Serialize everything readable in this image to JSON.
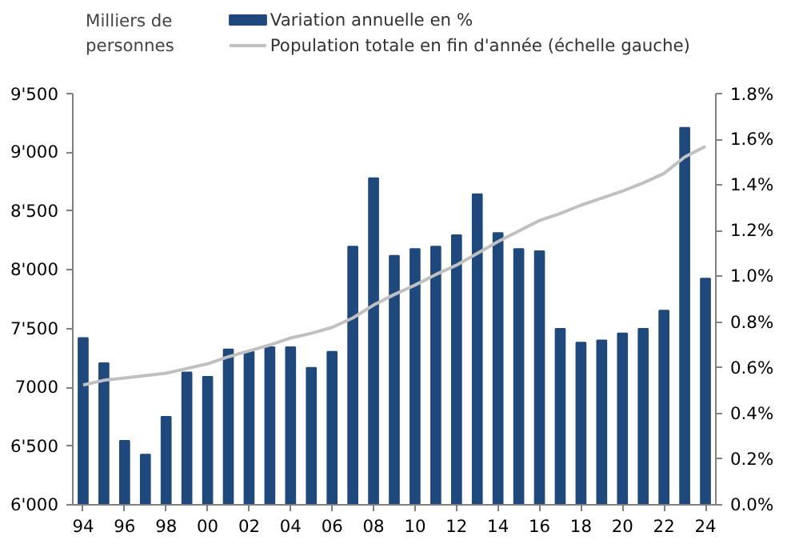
{
  "chart_data": {
    "type": "bar",
    "ylabel": "Milliers de\npersonnes",
    "legend": "top",
    "grid": false,
    "categories": [
      "94",
      null,
      "96",
      null,
      "98",
      null,
      "00",
      null,
      "02",
      null,
      "04",
      null,
      "06",
      null,
      "08",
      null,
      "10",
      null,
      "12",
      null,
      "14",
      null,
      "16",
      null,
      "18",
      null,
      "20",
      null,
      "22",
      null,
      "24"
    ],
    "ylim": [
      6000,
      9500
    ],
    "yticks": [
      {
        "value": 6000,
        "label": "6'000"
      },
      {
        "value": 6500,
        "label": "6'500"
      },
      7000,
      {
        "value": 7500,
        "label": "7'500"
      },
      {
        "value": 8000,
        "label": "8'000"
      },
      {
        "value": 8500,
        "label": "8'500"
      },
      {
        "value": 9000,
        "label": "9'000"
      },
      {
        "value": 9500,
        "label": "9'500"
      }
    ],
    "y2lim": [
      0,
      1.8
    ],
    "y2ticks": [
      {
        "value": 0,
        "label": "0.0%"
      },
      {
        "value": 0.2,
        "label": "0.2%"
      },
      {
        "value": 0.4,
        "label": "0.4%"
      },
      {
        "value": 0.6,
        "label": "0.6%"
      },
      {
        "value": 0.8,
        "label": "0.8%"
      },
      {
        "value": 1.0,
        "label": "1.0%"
      },
      {
        "value": 1.2,
        "label": "1.2%"
      },
      {
        "value": 1.4,
        "label": "1.4%"
      },
      {
        "value": 1.6,
        "label": "1.6%"
      },
      {
        "value": 1.8,
        "label": "1.8%"
      }
    ],
    "series": [
      {
        "name": "Variation annuelle en %",
        "axis": "y2",
        "color": "#1f497d",
        "values": [
          0.73,
          0.62,
          0.28,
          0.22,
          0.385,
          0.58,
          0.56,
          0.68,
          0.67,
          0.69,
          0.69,
          0.6,
          0.67,
          1.13,
          1.43,
          1.09,
          1.12,
          1.13,
          1.18,
          1.36,
          1.19,
          1.12,
          1.11,
          0.77,
          0.71,
          0.72,
          0.75,
          0.77,
          0.85,
          1.65,
          0.99
        ]
      },
      {
        "name": "Population totale en fin d'année (échelle gauche)",
        "type": "line",
        "color": "#c0c0c0",
        "values": [
          7020,
          7060,
          7080,
          7100,
          7120,
          7160,
          7200,
          7260,
          7310,
          7360,
          7420,
          7460,
          7510,
          7590,
          7700,
          7790,
          7870,
          7960,
          8040,
          8140,
          8240,
          8330,
          8420,
          8480,
          8550,
          8610,
          8670,
          8740,
          8820,
          8960,
          9050
        ]
      }
    ]
  }
}
